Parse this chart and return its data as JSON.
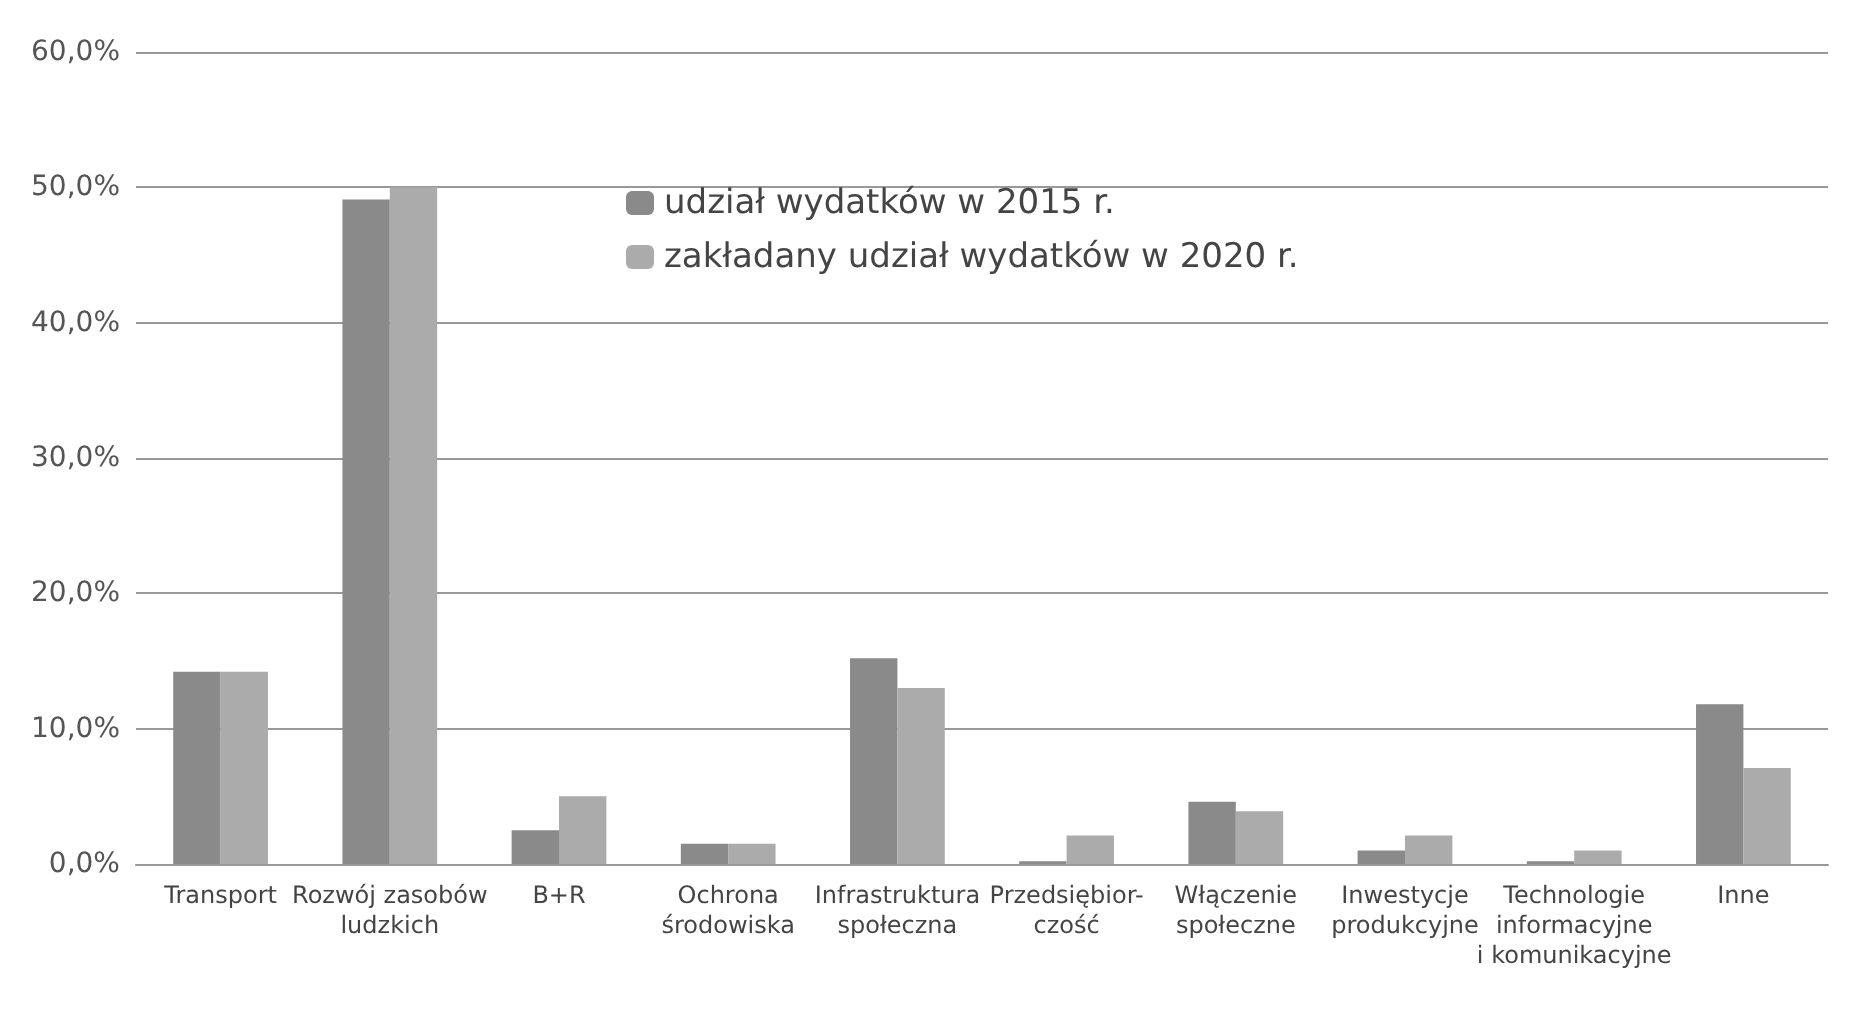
{
  "chart_data": {
    "type": "bar",
    "categories": [
      "Transport",
      "Rozwój zasobów\nludzkich",
      "B+R",
      "Ochrona\nśrodowiska",
      "Infrastruktura\nspołeczna",
      "Przedsiębior-\nczość",
      "Włączenie\nspołeczne",
      "Inwestycje\nprodukcyjne",
      "Technologie\ninformacyjne\ni komunikacyjne",
      "Inne"
    ],
    "series": [
      {
        "name": "udział wydatków w 2015 r.",
        "color": "#8a8a8a",
        "values": [
          14.2,
          49.1,
          2.5,
          1.5,
          15.2,
          0.2,
          4.6,
          1.0,
          0.2,
          11.8
        ]
      },
      {
        "name": "zakładany udział wydatków w 2020 r.",
        "color": "#ababab",
        "values": [
          14.2,
          50.0,
          5.0,
          1.5,
          13.0,
          2.1,
          3.9,
          2.1,
          1.0,
          7.1
        ]
      }
    ],
    "ylim": [
      0,
      60
    ],
    "yticks": [
      {
        "value": 0,
        "label": "0,0%"
      },
      {
        "value": 10,
        "label": "10,0%"
      },
      {
        "value": 20,
        "label": "20,0%"
      },
      {
        "value": 30,
        "label": "30,0%"
      },
      {
        "value": 40,
        "label": "40,0%"
      },
      {
        "value": 50,
        "label": "50,0%"
      },
      {
        "value": 60,
        "label": "60,0%"
      }
    ],
    "grid": "y",
    "legend": "top"
  }
}
